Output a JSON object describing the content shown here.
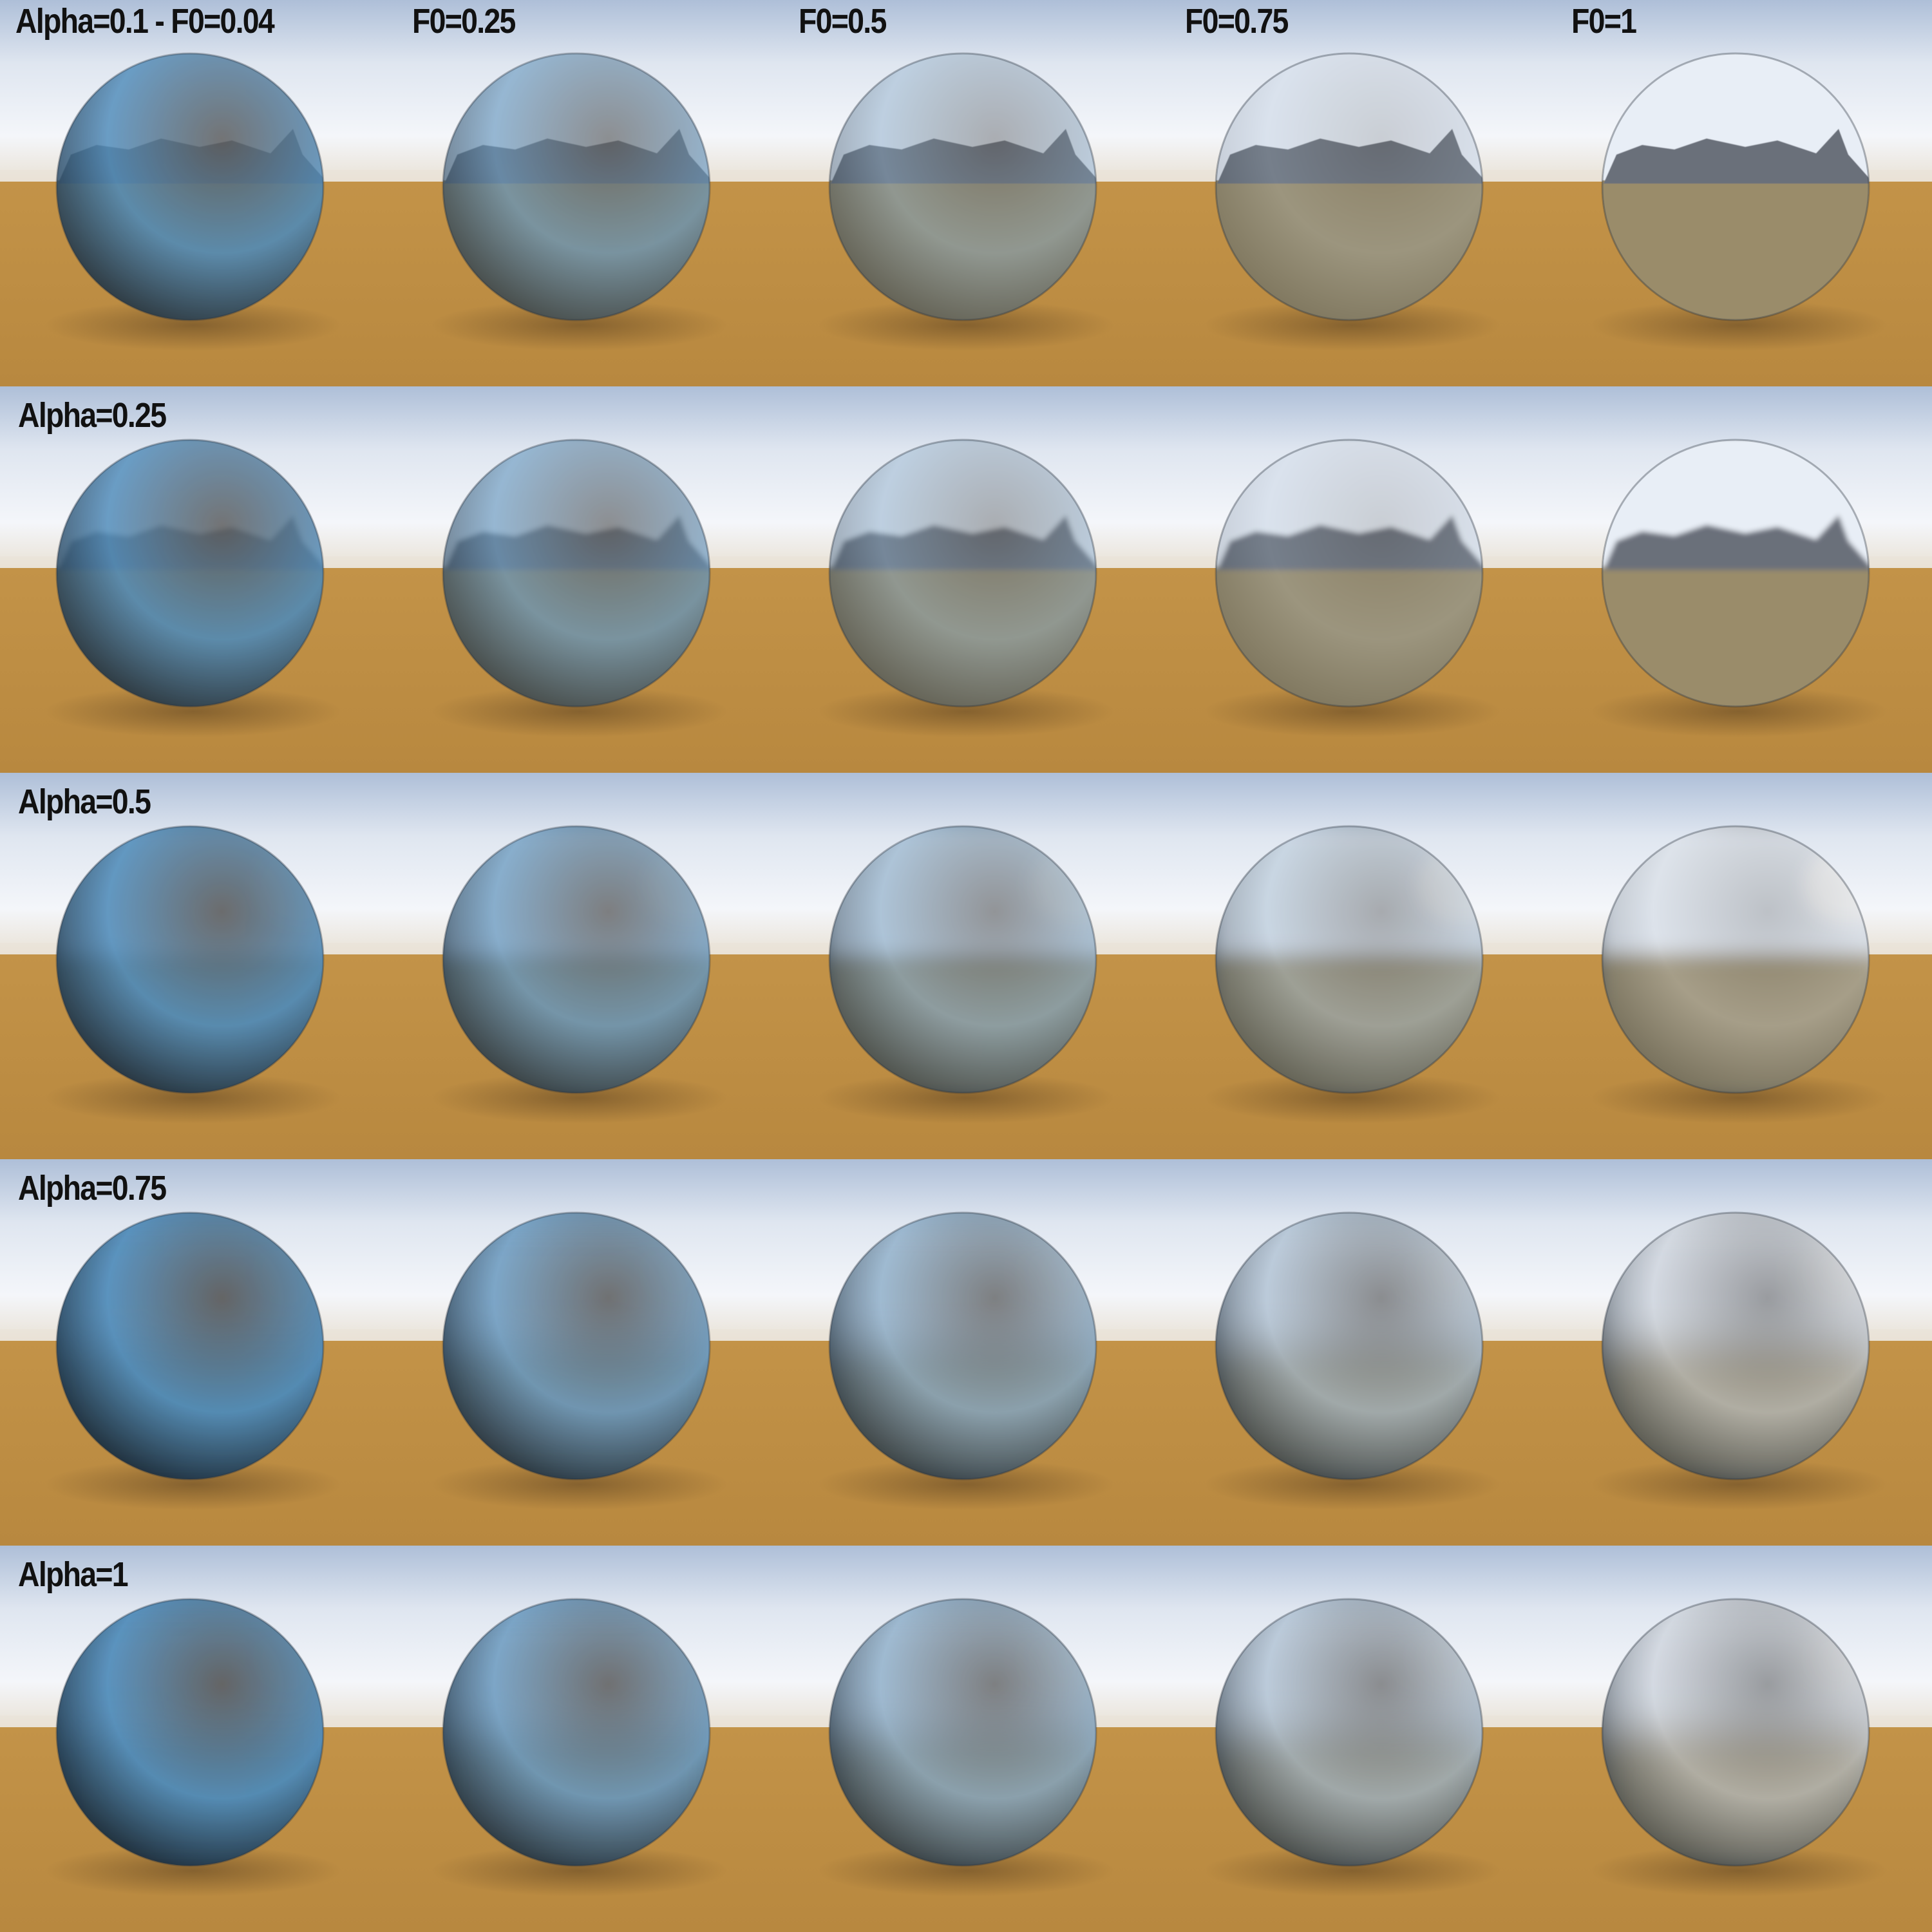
{
  "figure": {
    "row_labels": [
      "Alpha=0.1 - F0=0.04",
      "Alpha=0.25",
      "Alpha=0.5",
      "Alpha=0.75",
      "Alpha=1"
    ],
    "col_labels": [
      "",
      "F0=0.25",
      "F0=0.5",
      "F0=0.75",
      "F0=1"
    ],
    "alpha_values": [
      0.1,
      0.25,
      0.5,
      0.75,
      1
    ],
    "f0_values": [
      0.04,
      0.25,
      0.5,
      0.75,
      1
    ],
    "colors": {
      "sky_top": "#aebfd8",
      "sky_mid": "#f4f6fa",
      "horizon_haze": "#e9e2d6",
      "ground_near": "#c7964a",
      "ground_far": "#b8883f",
      "sphere_base": "#4a88b8",
      "mountain": "#6b6f7a"
    }
  }
}
